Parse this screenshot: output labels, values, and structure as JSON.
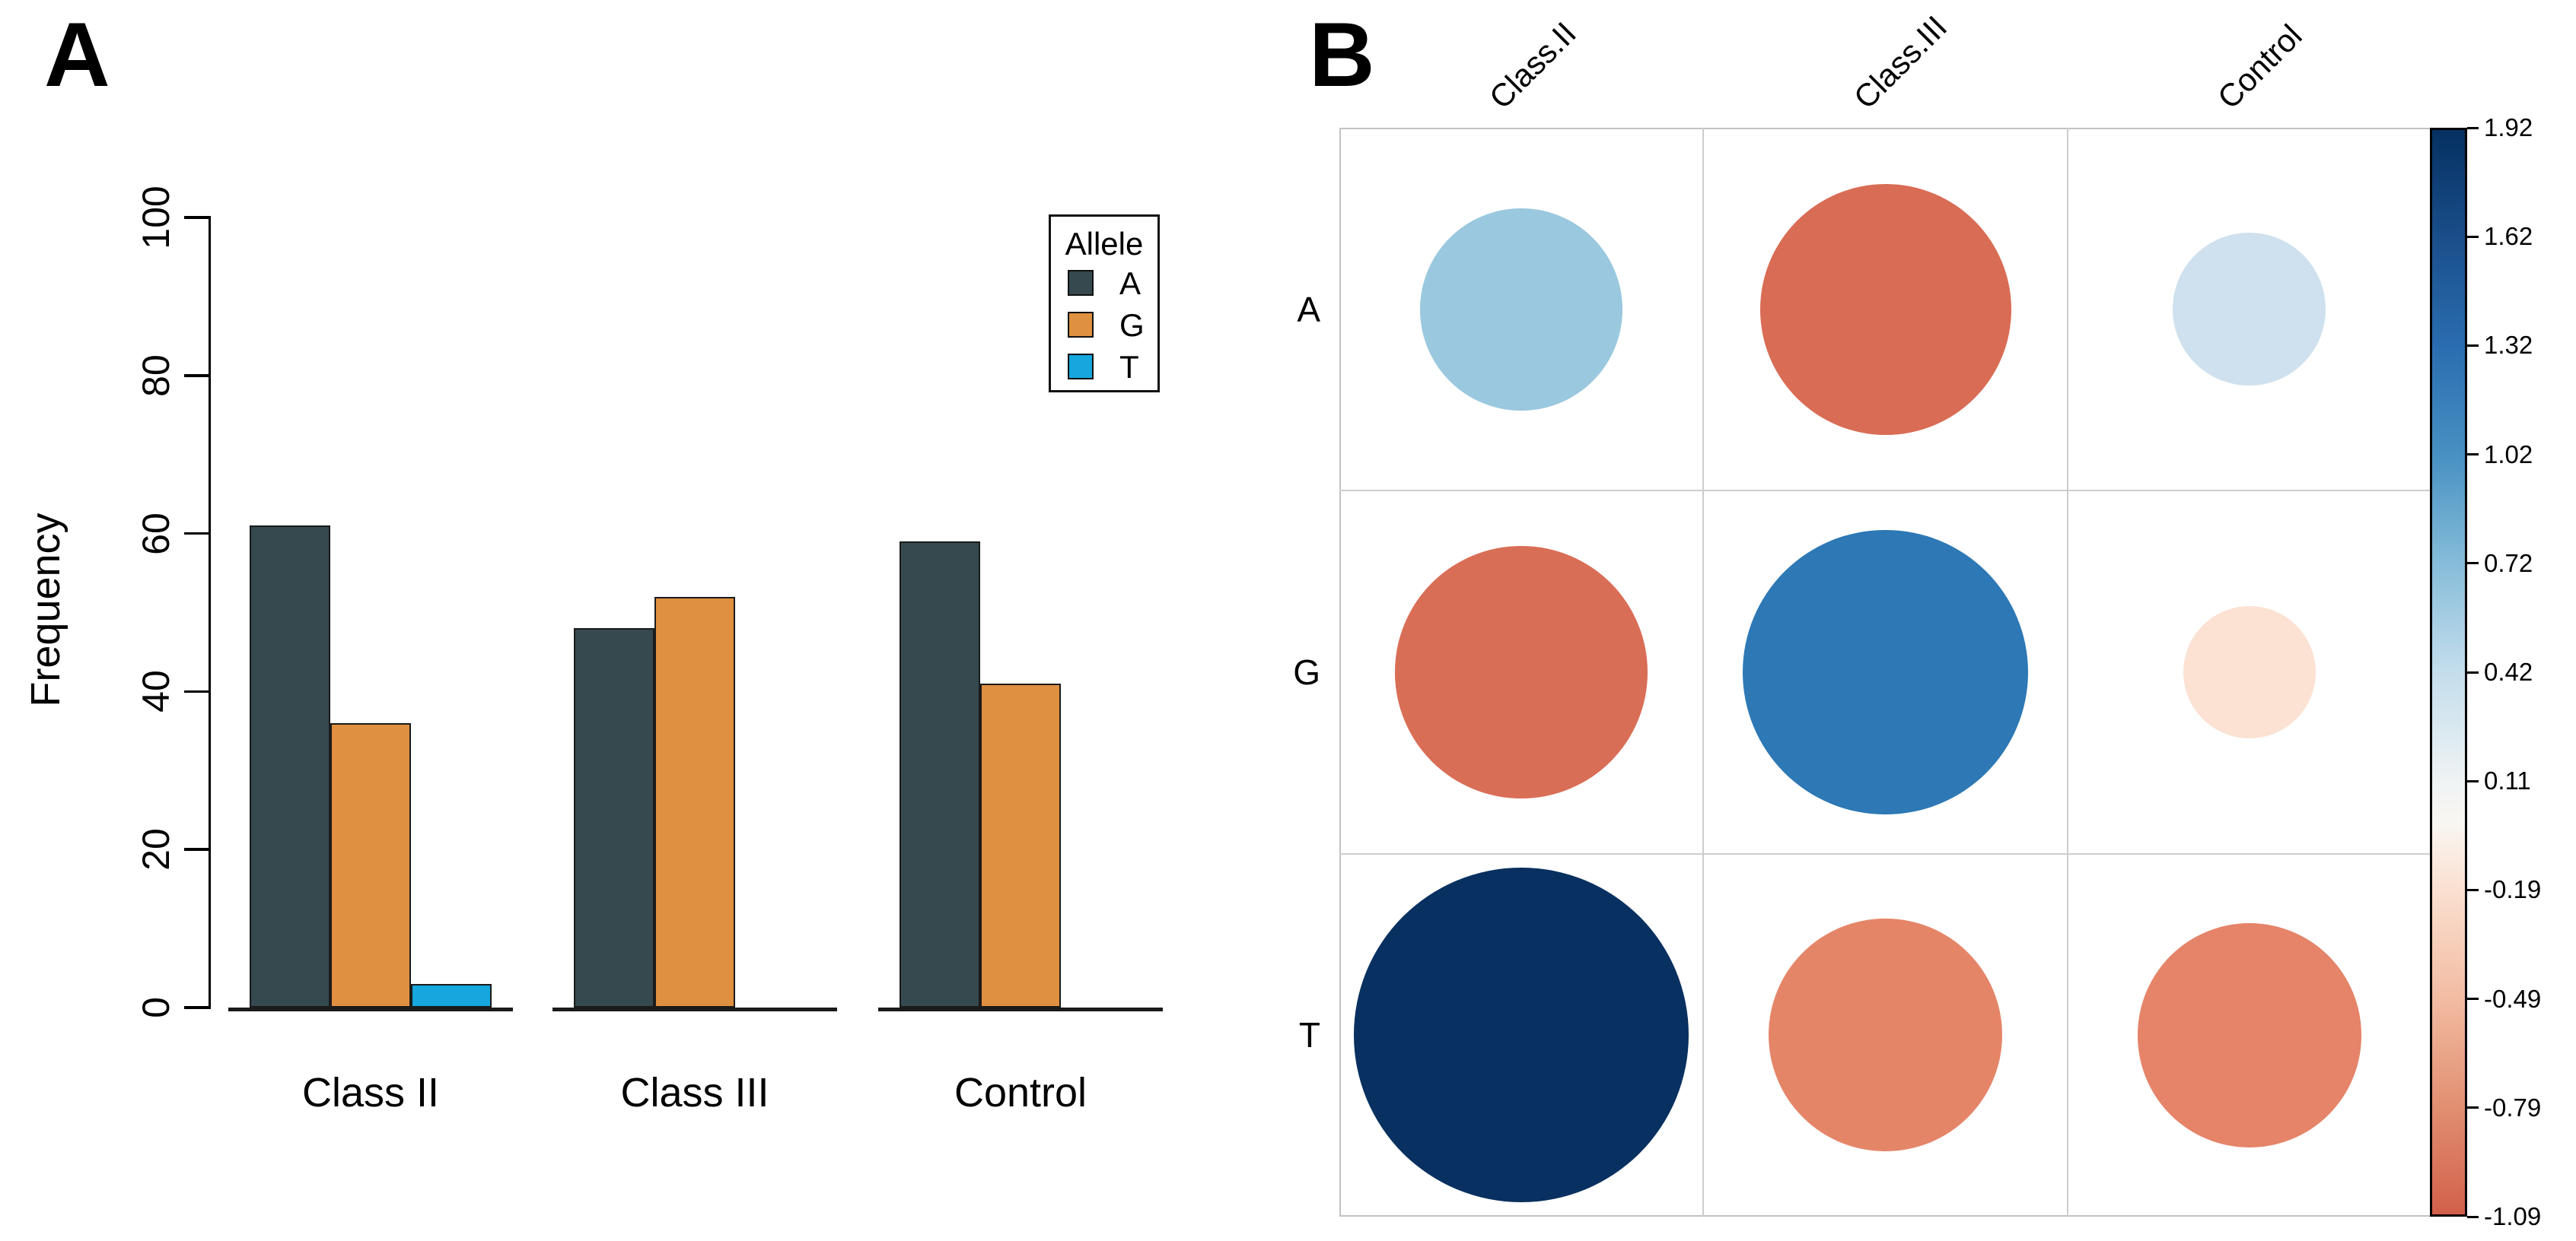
{
  "panels": {
    "a_letter": "A",
    "b_letter": "B"
  },
  "chart_data": [
    {
      "type": "bar",
      "panel": "A",
      "title": "",
      "categories": [
        "Class II",
        "Class III",
        "Control"
      ],
      "series": [
        {
          "name": "A",
          "color": "#35494F",
          "values": [
            61,
            48,
            59
          ]
        },
        {
          "name": "G",
          "color": "#DF9040",
          "values": [
            36,
            52,
            41
          ]
        },
        {
          "name": "T",
          "color": "#15A7DD",
          "values": [
            3,
            0,
            0
          ]
        }
      ],
      "xlabel": "",
      "ylabel": "Frequency",
      "ylim": [
        0,
        100
      ],
      "yticks": [
        "0",
        "20",
        "40",
        "60",
        "80",
        "100"
      ],
      "grid": false,
      "legend": {
        "title": "Allele",
        "position": "top-right",
        "entries": [
          "A",
          "G",
          "T"
        ]
      }
    },
    {
      "type": "heatmap",
      "panel": "B",
      "subtype": "bubble-correlation-matrix",
      "columns": [
        "Class.II",
        "Class.III",
        "Control"
      ],
      "rows": [
        "A",
        "G",
        "T"
      ],
      "values": [
        [
          0.7,
          -1.08,
          0.4
        ],
        [
          -1.09,
          1.39,
          -0.3
        ],
        [
          1.92,
          -0.93,
          -0.86
        ]
      ],
      "cell_colors": [
        [
          "#9AC8DF",
          "#D96C54",
          "#CFE1EE"
        ],
        [
          "#D96E56",
          "#2D78B5",
          "#FBE2D3"
        ],
        [
          "#083060",
          "#E58568",
          "#E58468"
        ]
      ],
      "bubble_scale": "area proportional to |value|",
      "colorbar": {
        "max": 1.92,
        "min": -1.09,
        "top_color": "#053061",
        "mid_color": "#F7F7F5",
        "bottom_color": "#D2604A",
        "tick_labels": [
          "1.92",
          "1.62",
          "1.32",
          "1.02",
          "0.72",
          "0.42",
          "0.11",
          "-0.19",
          "-0.49",
          "-0.79",
          "-1.09"
        ]
      }
    }
  ]
}
